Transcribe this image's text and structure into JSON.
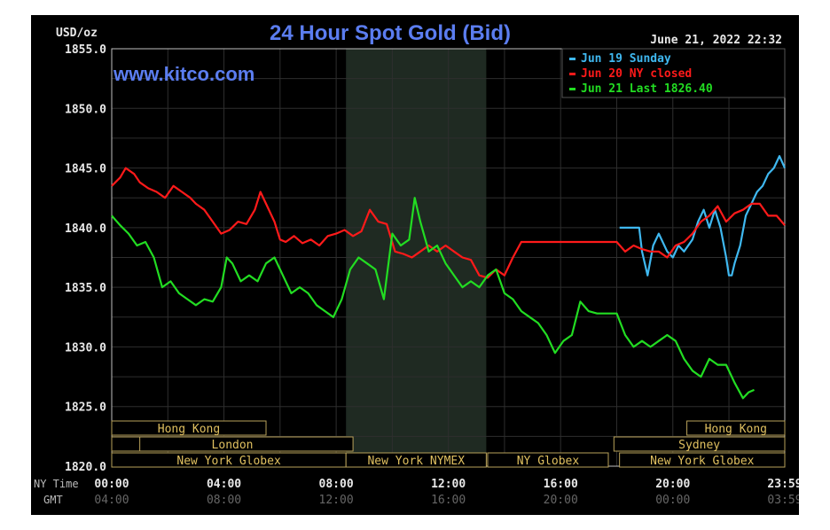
{
  "chart_data": {
    "type": "line",
    "title": "24 Hour Spot Gold (Bid)",
    "site": "www.kitco.com",
    "timestamp": "June 21, 2022 22:32",
    "ylabel": "USD/oz",
    "ylim": [
      1820,
      1855
    ],
    "y_ticks": [
      "1855.0",
      "1850.0",
      "1845.0",
      "1840.0",
      "1835.0",
      "1830.0",
      "1825.0",
      "1820.0"
    ],
    "x_row_label_ny": "NY Time",
    "x_row_label_gmt": "GMT",
    "x_ticks_ny": [
      "00:00",
      "04:00",
      "08:00",
      "12:00",
      "16:00",
      "20:00",
      "23:59"
    ],
    "x_ticks_gmt": [
      "04:00",
      "08:00",
      "12:00",
      "16:00",
      "20:00",
      "00:00",
      "03:59"
    ],
    "grid": true,
    "legend_position": "top-right",
    "legend": [
      {
        "label": "Jun 19 Sunday",
        "color": "#3fb8f0"
      },
      {
        "label": "Jun 20 NY closed",
        "color": "#ff1a1a"
      },
      {
        "label": "Jun 21 Last 1826.40",
        "color": "#22dd22"
      }
    ],
    "series": [
      {
        "name": "Jun 19 Sunday",
        "color": "#3fb8f0",
        "x": [
          18.1,
          18.8,
          18.9,
          19.1,
          19.3,
          19.5,
          19.8,
          20.0,
          20.2,
          20.4,
          20.7,
          20.9,
          21.1,
          21.3,
          21.5,
          21.7,
          21.9,
          22.0,
          22.1,
          22.2,
          22.4,
          22.6,
          22.8,
          23.0,
          23.2,
          23.4,
          23.6,
          23.8,
          23.99
        ],
        "values": [
          1840.0,
          1840.0,
          1838.0,
          1836.0,
          1838.5,
          1839.5,
          1838.0,
          1837.5,
          1838.5,
          1838.0,
          1839.0,
          1840.5,
          1841.5,
          1840.0,
          1841.5,
          1840.0,
          1837.5,
          1836.0,
          1836.0,
          1837.0,
          1838.5,
          1841.0,
          1842.0,
          1843.0,
          1843.5,
          1844.5,
          1845.0,
          1846.0,
          1845.0
        ]
      },
      {
        "name": "Jun 20 NY closed",
        "color": "#ff1a1a",
        "x": [
          0.0,
          0.3,
          0.5,
          0.8,
          1.0,
          1.3,
          1.6,
          1.9,
          2.2,
          2.5,
          2.8,
          3.0,
          3.3,
          3.6,
          3.9,
          4.2,
          4.5,
          4.8,
          5.1,
          5.3,
          5.5,
          5.8,
          6.0,
          6.2,
          6.5,
          6.8,
          7.1,
          7.4,
          7.7,
          8.0,
          8.3,
          8.6,
          8.9,
          9.2,
          9.5,
          9.8,
          10.1,
          10.4,
          10.7,
          11.0,
          11.3,
          11.6,
          11.9,
          12.2,
          12.5,
          12.8,
          13.1,
          13.4,
          13.7,
          14.0,
          14.3,
          14.6,
          15.0,
          16.0,
          17.0,
          18.0,
          18.3,
          18.6,
          18.9,
          19.2,
          19.5,
          19.8,
          20.1,
          20.4,
          20.7,
          21.0,
          21.3,
          21.6,
          21.9,
          22.2,
          22.5,
          22.8,
          23.1,
          23.4,
          23.7,
          23.99
        ],
        "values": [
          1843.5,
          1844.2,
          1845.0,
          1844.5,
          1843.8,
          1843.3,
          1843.0,
          1842.5,
          1843.5,
          1843.0,
          1842.5,
          1842.0,
          1841.5,
          1840.5,
          1839.5,
          1839.8,
          1840.5,
          1840.3,
          1841.5,
          1843.0,
          1842.0,
          1840.5,
          1839.0,
          1838.8,
          1839.3,
          1838.7,
          1839.0,
          1838.5,
          1839.3,
          1839.5,
          1839.8,
          1839.3,
          1839.7,
          1841.5,
          1840.5,
          1840.3,
          1838.0,
          1837.8,
          1837.5,
          1838.0,
          1838.5,
          1838.0,
          1838.5,
          1838.0,
          1837.5,
          1837.3,
          1836.0,
          1835.8,
          1836.5,
          1836.0,
          1837.5,
          1838.8,
          1838.8,
          1838.8,
          1838.8,
          1838.8,
          1838.0,
          1838.5,
          1838.2,
          1838.0,
          1838.0,
          1837.5,
          1838.5,
          1838.8,
          1839.5,
          1840.5,
          1841.0,
          1841.8,
          1840.5,
          1841.2,
          1841.5,
          1842.0,
          1842.0,
          1841.0,
          1841.0,
          1840.2
        ]
      },
      {
        "name": "Jun 21 Last 1826.40",
        "color": "#22dd22",
        "x": [
          0.0,
          0.3,
          0.6,
          0.9,
          1.2,
          1.5,
          1.8,
          2.1,
          2.4,
          2.7,
          3.0,
          3.3,
          3.6,
          3.9,
          4.1,
          4.3,
          4.6,
          4.9,
          5.2,
          5.5,
          5.8,
          6.1,
          6.4,
          6.7,
          7.0,
          7.3,
          7.6,
          7.9,
          8.2,
          8.5,
          8.8,
          9.1,
          9.4,
          9.7,
          10.0,
          10.3,
          10.6,
          10.8,
          11.0,
          11.3,
          11.6,
          11.9,
          12.2,
          12.5,
          12.8,
          13.1,
          13.4,
          13.7,
          14.0,
          14.3,
          14.6,
          14.9,
          15.2,
          15.5,
          15.8,
          16.1,
          16.4,
          16.7,
          17.0,
          17.3,
          17.6,
          18.0,
          18.3,
          18.6,
          18.9,
          19.2,
          19.5,
          19.8,
          20.1,
          20.4,
          20.7,
          21.0,
          21.3,
          21.6,
          21.9,
          22.2,
          22.5,
          22.7,
          22.9
        ],
        "values": [
          1841.0,
          1840.2,
          1839.5,
          1838.5,
          1838.8,
          1837.5,
          1835.0,
          1835.5,
          1834.5,
          1834.0,
          1833.5,
          1834.0,
          1833.8,
          1835.0,
          1837.5,
          1837.0,
          1835.5,
          1836.0,
          1835.5,
          1837.0,
          1837.5,
          1836.0,
          1834.5,
          1835.0,
          1834.5,
          1833.5,
          1833.0,
          1832.5,
          1834.0,
          1836.5,
          1837.5,
          1837.0,
          1836.5,
          1834.0,
          1839.5,
          1838.5,
          1839.0,
          1842.5,
          1840.5,
          1838.0,
          1838.5,
          1837.0,
          1836.0,
          1835.0,
          1835.5,
          1835.0,
          1836.0,
          1836.5,
          1834.5,
          1834.0,
          1833.0,
          1832.5,
          1832.0,
          1831.0,
          1829.5,
          1830.5,
          1831.0,
          1833.8,
          1833.0,
          1832.8,
          1832.8,
          1832.8,
          1831.0,
          1830.0,
          1830.5,
          1830.0,
          1830.5,
          1831.0,
          1830.5,
          1829.0,
          1828.0,
          1827.5,
          1829.0,
          1828.5,
          1828.5,
          1827.0,
          1825.7,
          1826.2,
          1826.4
        ]
      }
    ],
    "session_bars": [
      {
        "label": "Hong Kong",
        "row": 0
      },
      {
        "label": "London",
        "row": 1
      },
      {
        "label": "New York Globex",
        "row": 2
      },
      {
        "label": "New York NYMEX",
        "row": 2
      },
      {
        "label": "NY Globex",
        "row": 2
      },
      {
        "label": "New York Globex",
        "row": 2
      },
      {
        "label": "Hong Kong",
        "row": 0
      },
      {
        "label": "Sydney",
        "row": 1
      }
    ]
  }
}
